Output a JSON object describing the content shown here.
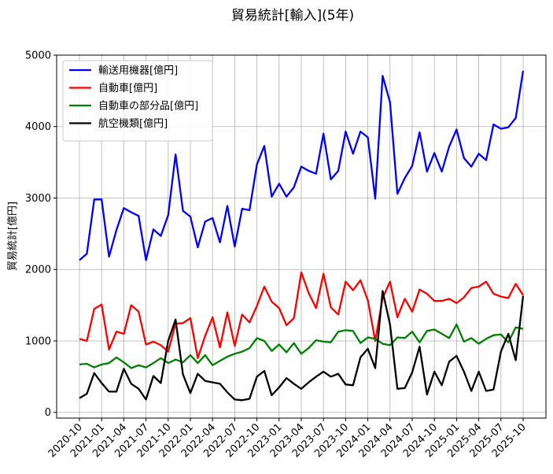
{
  "chart_data": {
    "type": "line",
    "title": "貿易統計[輸入](5年)",
    "xlabel": "",
    "ylabel": "貿易統計[億円]",
    "ylim": [
      -80,
      5000
    ],
    "yticks": [
      0,
      1000,
      2000,
      3000,
      4000,
      5000
    ],
    "grid": true,
    "legend_position": "top-left",
    "x": [
      "2020-10",
      "2020-11",
      "2020-12",
      "2021-01",
      "2021-02",
      "2021-03",
      "2021-04",
      "2021-05",
      "2021-06",
      "2021-07",
      "2021-08",
      "2021-09",
      "2021-10",
      "2021-11",
      "2021-12",
      "2022-01",
      "2022-02",
      "2022-03",
      "2022-04",
      "2022-05",
      "2022-06",
      "2022-07",
      "2022-08",
      "2022-09",
      "2022-10",
      "2022-11",
      "2022-12",
      "2023-01",
      "2023-02",
      "2023-03",
      "2023-04",
      "2023-05",
      "2023-06",
      "2023-07",
      "2023-08",
      "2023-09",
      "2023-10",
      "2023-11",
      "2023-12",
      "2024-01",
      "2024-02",
      "2024-03",
      "2024-04",
      "2024-05",
      "2024-06",
      "2024-07",
      "2024-08",
      "2024-09",
      "2024-10",
      "2024-11",
      "2024-12",
      "2025-01",
      "2025-02",
      "2025-03",
      "2025-04",
      "2025-05",
      "2025-06",
      "2025-07",
      "2025-08",
      "2025-09",
      "2025-10"
    ],
    "xtick_labels": [
      "2020-10",
      "2021-01",
      "2021-04",
      "2021-07",
      "2021-10",
      "2022-01",
      "2022-04",
      "2022-07",
      "2022-10",
      "2023-01",
      "2023-04",
      "2023-07",
      "2023-10",
      "2024-01",
      "2024-04",
      "2024-07",
      "2024-10",
      "2025-01",
      "2025-04",
      "2025-07",
      "2025-10"
    ],
    "series": [
      {
        "name": "輸送用機器[億円]",
        "color": "#0000ff",
        "values": [
          2130,
          2220,
          2980,
          2980,
          2180,
          2550,
          2860,
          2800,
          2750,
          2130,
          2560,
          2470,
          2760,
          3610,
          2820,
          2740,
          2310,
          2670,
          2720,
          2380,
          2890,
          2320,
          2850,
          2830,
          3470,
          3730,
          3020,
          3200,
          3020,
          3150,
          3440,
          3380,
          3340,
          3900,
          3260,
          3380,
          3930,
          3620,
          3930,
          3850,
          2990,
          4710,
          4340,
          3060,
          3280,
          3450,
          3920,
          3370,
          3630,
          3370,
          3720,
          3960,
          3560,
          3440,
          3620,
          3530,
          4030,
          3970,
          3990,
          4120,
          4780
        ]
      },
      {
        "name": "自動車[億円]",
        "color": "#ff0000",
        "values": [
          1030,
          1000,
          1450,
          1510,
          880,
          1130,
          1100,
          1500,
          1410,
          950,
          990,
          940,
          850,
          1240,
          1250,
          1320,
          760,
          1070,
          1330,
          910,
          1400,
          930,
          1370,
          1260,
          1490,
          1760,
          1550,
          1460,
          1220,
          1320,
          1960,
          1670,
          1460,
          1940,
          1470,
          1370,
          1830,
          1710,
          1850,
          1570,
          1000,
          1600,
          1830,
          1330,
          1590,
          1410,
          1720,
          1660,
          1560,
          1560,
          1590,
          1530,
          1610,
          1740,
          1760,
          1830,
          1660,
          1620,
          1600,
          1800,
          1640
        ]
      },
      {
        "name": "自動車の部分品[億円]",
        "color": "#008000",
        "values": [
          670,
          680,
          630,
          670,
          690,
          770,
          700,
          620,
          660,
          630,
          690,
          760,
          690,
          740,
          700,
          800,
          690,
          800,
          660,
          720,
          780,
          820,
          850,
          900,
          1040,
          1000,
          860,
          950,
          840,
          970,
          820,
          900,
          1010,
          990,
          980,
          1130,
          1150,
          1140,
          970,
          1050,
          1030,
          960,
          940,
          1050,
          1040,
          1130,
          980,
          1140,
          1160,
          1100,
          1040,
          1230,
          990,
          1040,
          960,
          1030,
          1080,
          1090,
          980,
          1190,
          1170
        ]
      },
      {
        "name": "航空機類[億円]",
        "color": "#000000",
        "values": [
          200,
          260,
          550,
          410,
          290,
          290,
          610,
          400,
          330,
          180,
          510,
          410,
          1000,
          1300,
          530,
          270,
          540,
          440,
          420,
          400,
          280,
          180,
          170,
          190,
          500,
          580,
          240,
          350,
          480,
          400,
          330,
          420,
          500,
          570,
          500,
          540,
          390,
          380,
          770,
          890,
          620,
          1700,
          1230,
          330,
          340,
          560,
          920,
          250,
          570,
          380,
          710,
          790,
          570,
          300,
          570,
          300,
          320,
          850,
          1100,
          730,
          1630
        ]
      }
    ]
  }
}
